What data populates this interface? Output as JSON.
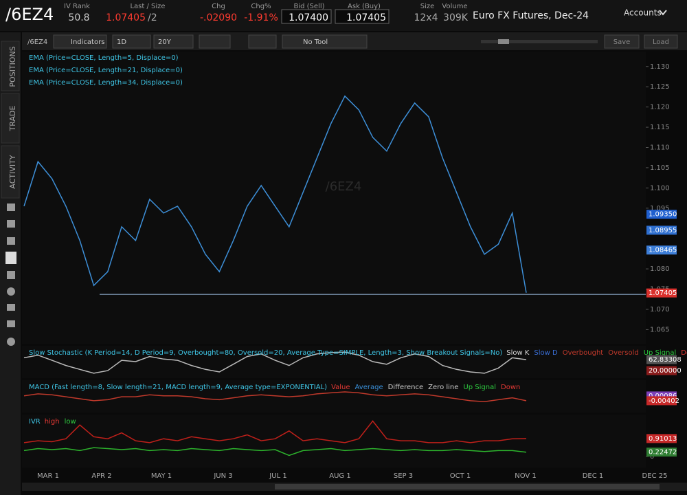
{
  "header": {
    "symbol": "/6EZ4",
    "fields": [
      {
        "label": "IV Rank",
        "value": "50.8"
      },
      {
        "label": "Last / Size",
        "value": "1.07405",
        "size": "/2"
      },
      {
        "label": "Chg",
        "value": "-.02090"
      },
      {
        "label": "Chg%",
        "value": "-1.91%"
      },
      {
        "label": "Bid (Sell)",
        "value": "1.07400"
      },
      {
        "label": "Ask (Buy)",
        "value": "1.07405"
      },
      {
        "label": "Size",
        "value": "12x4"
      },
      {
        "label": "Volume",
        "value": "309K"
      }
    ],
    "description": "Euro FX Futures, Dec-24",
    "accounts": "Accounts"
  },
  "sidebar": {
    "tabs": [
      "POSITIONS",
      "TRADE",
      "ACTIVITY"
    ]
  },
  "toolbar": {
    "symbol": "/6EZ4",
    "indicators": "Indicators",
    "aggregation": "1D",
    "range": "20Y",
    "tool": "No Tool",
    "save": "Save",
    "load": "Load"
  },
  "chart_data": [
    {
      "type": "line",
      "watermark": "/6EZ4",
      "legend": [
        "EMA (Price=CLOSE, Length=5, Displace=0)",
        "EMA (Price=CLOSE, Length=21, Displace=0)",
        "EMA (Price=CLOSE, Length=34, Displace=0)"
      ],
      "series": [
        {
          "color": "#3d8fd8",
          "values": [
            1.0955,
            1.1065,
            1.1023,
            1.0955,
            1.087,
            1.0759,
            1.0793,
            1.0904,
            1.087,
            1.0972,
            1.0938,
            1.0955,
            1.0904,
            1.0836,
            1.0793,
            1.087,
            1.0955,
            1.1006,
            1.0955,
            1.0904,
            1.0989,
            1.1074,
            1.1159,
            1.1227,
            1.1193,
            1.1125,
            1.1091,
            1.1159,
            1.121,
            1.1176,
            1.1074,
            1.0989,
            1.0904,
            1.0836,
            1.0861,
            1.0938,
            1.0741
          ]
        }
      ],
      "ylim": [
        1.0615,
        1.1337
      ],
      "yticks": [
        {
          "value": 1.065,
          "label": "1.065"
        },
        {
          "value": 1.07,
          "label": "1.070"
        },
        {
          "value": 1.075,
          "label": "1.075"
        },
        {
          "value": 1.08,
          "label": "1.080"
        },
        {
          "value": 1.095,
          "label": "1.095"
        },
        {
          "value": 1.1,
          "label": "1.100"
        },
        {
          "value": 1.105,
          "label": "1.105"
        },
        {
          "value": 1.11,
          "label": "1.110"
        },
        {
          "value": 1.115,
          "label": "1.115"
        },
        {
          "value": 1.12,
          "label": "1.120"
        },
        {
          "value": 1.125,
          "label": "1.125"
        },
        {
          "value": 1.13,
          "label": "1.130"
        }
      ],
      "hline": 1.0737,
      "price_labels": [
        {
          "value": 1.0935,
          "label": "1.09350",
          "color": "#1f5fcf"
        },
        {
          "value": 1.08955,
          "label": "1.08955",
          "color": "#2e6fd0"
        },
        {
          "value": 1.08465,
          "label": "1.08465",
          "color": "#3d7ed8"
        },
        {
          "value": 1.07405,
          "label": "1.07405",
          "color": "#d9302c"
        }
      ],
      "x_axis_labels": [
        "MAR 1",
        "APR 2",
        "MAY 1",
        "JUN 3",
        "JUL 1",
        "AUG 1",
        "SEP 3",
        "OCT 1",
        "NOV 1",
        "DEC 1",
        "DEC 25"
      ]
    },
    {
      "type": "line",
      "title": "Slow Stochastic (K Period=14, D Period=9, Overbought=80, Oversold=20, Average Type=SIMPLE, Length=3, Show Breakout Signals=No)",
      "legend": [
        {
          "text": "Slow K",
          "color": "#dddddd"
        },
        {
          "text": "Slow D",
          "color": "#3a6fd8"
        },
        {
          "text": "Overbought",
          "color": "#c0392b"
        },
        {
          "text": "Oversold",
          "color": "#c0392b"
        },
        {
          "text": "Up Signal",
          "color": "#2ecc40"
        },
        {
          "text": "Down",
          "color": "#e53935"
        }
      ],
      "series": [
        {
          "color": "#bbbbbb",
          "values": [
            70,
            80,
            60,
            40,
            25,
            10,
            20,
            60,
            55,
            75,
            65,
            60,
            40,
            25,
            15,
            45,
            75,
            85,
            60,
            40,
            70,
            85,
            90,
            92,
            80,
            55,
            45,
            70,
            85,
            75,
            40,
            25,
            15,
            10,
            30,
            70,
            62.8
          ]
        }
      ],
      "ylim": [
        -9,
        111
      ],
      "price_labels": [
        {
          "value": 62.83308,
          "label": "62.83308",
          "color": "#555555"
        },
        {
          "value": 20,
          "label": "20.00000",
          "color": "#8a1c1c"
        }
      ]
    },
    {
      "type": "line",
      "title": "MACD (Fast length=8, Slow length=21, MACD length=9, Average type=EXPONENTIAL)",
      "legend": [
        {
          "text": "Value",
          "color": "#e53935"
        },
        {
          "text": "Average",
          "color": "#3a8fd8"
        },
        {
          "text": "Difference",
          "color": "#cccccc"
        },
        {
          "text": "Zero line",
          "color": "#cccccc"
        },
        {
          "text": "Up Signal",
          "color": "#2ecc40"
        },
        {
          "text": "Down",
          "color": "#e53935"
        }
      ],
      "series": [
        {
          "color": "#c0392b",
          "values": [
            0.001,
            0.003,
            0.002,
            0,
            -0.002,
            -0.004,
            -0.003,
            0,
            0,
            0.002,
            0.001,
            0.001,
            0,
            -0.002,
            -0.003,
            -0.001,
            0.001,
            0.002,
            0.001,
            0,
            0.001,
            0.003,
            0.004,
            0.005,
            0.004,
            0.002,
            0.001,
            0.002,
            0.003,
            0.002,
            0,
            -0.002,
            -0.004,
            -0.005,
            -0.003,
            -0.001,
            -0.004
          ]
        }
      ],
      "ylim": [
        -0.016,
        0.0155
      ],
      "price_labels": [
        {
          "value": 0.00086,
          "label": "0.00086",
          "color": "#7b3fb8"
        },
        {
          "value": -0.00402,
          "label": "-0.00402",
          "color": "#c62828"
        }
      ]
    },
    {
      "type": "line",
      "title": "IVR",
      "legend": [
        {
          "text": "high",
          "color": "#e53935"
        },
        {
          "text": "low",
          "color": "#2ecc40"
        }
      ],
      "series": [
        {
          "color": "#c0201a",
          "values": [
            0.7,
            0.8,
            0.75,
            0.9,
            1.6,
            1.0,
            0.9,
            1.2,
            0.8,
            0.7,
            0.9,
            0.8,
            1.0,
            0.9,
            0.8,
            0.9,
            1.1,
            0.8,
            0.9,
            1.3,
            0.8,
            0.9,
            0.8,
            0.7,
            0.9,
            1.8,
            0.9,
            0.8,
            0.8,
            0.7,
            0.7,
            0.8,
            0.7,
            0.8,
            0.8,
            0.9,
            0.91
          ]
        },
        {
          "color": "#2db52d",
          "values": [
            0.3,
            0.4,
            0.35,
            0.4,
            0.3,
            0.45,
            0.4,
            0.35,
            0.4,
            0.3,
            0.35,
            0.3,
            0.4,
            0.35,
            0.3,
            0.4,
            0.35,
            0.3,
            0.35,
            0.05,
            0.3,
            0.35,
            0.4,
            0.3,
            0.35,
            0.4,
            0.35,
            0.3,
            0.35,
            0.3,
            0.3,
            0.35,
            0.3,
            0.25,
            0.3,
            0.3,
            0.22
          ]
        }
      ],
      "ylim": [
        -0.56,
        2.06
      ],
      "yticks": [
        0
      ],
      "price_labels": [
        {
          "value": 0.91013,
          "label": "0.91013",
          "color": "#c62828"
        },
        {
          "value": 0.22472,
          "label": "0.22472",
          "color": "#2e7d32"
        }
      ]
    }
  ]
}
